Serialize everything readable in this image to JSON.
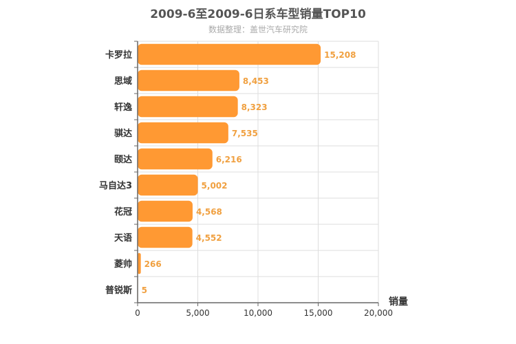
{
  "title": "2009-6至2009-6日系车型销量TOP10",
  "subtitle": "数据整理：盖世汽车研究院",
  "chart_data": {
    "type": "bar",
    "orientation": "horizontal",
    "title": "2009-6至2009-6日系车型销量TOP10",
    "subtitle": "数据整理：盖世汽车研究院",
    "xlabel": "销量",
    "ylabel": "",
    "categories": [
      "卡罗拉",
      "思域",
      "轩逸",
      "骐达",
      "颐达",
      "马自达3",
      "花冠",
      "天语",
      "菱帅",
      "普锐斯"
    ],
    "values": [
      15208,
      8453,
      8323,
      7535,
      6216,
      5002,
      4568,
      4552,
      266,
      5
    ],
    "value_labels": [
      "15,208",
      "8,453",
      "8,323",
      "7,535",
      "6,216",
      "5,002",
      "4,568",
      "4,552",
      "266",
      "5"
    ],
    "xlim": [
      0,
      20000
    ],
    "xticks": [
      0,
      5000,
      10000,
      15000,
      20000
    ],
    "xtick_labels": [
      "0",
      "5,000",
      "10,000",
      "15,000",
      "20,000"
    ],
    "grid": true,
    "bar_color": "#ff9933"
  }
}
